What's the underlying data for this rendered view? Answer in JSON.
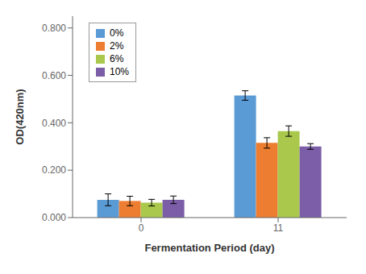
{
  "chart_data": {
    "type": "bar",
    "categories": [
      "0",
      "11"
    ],
    "series": [
      {
        "name": "0%",
        "color": "#5B9BD5",
        "values": [
          0.075,
          0.515
        ],
        "errors": [
          0.025,
          0.02
        ]
      },
      {
        "name": "2%",
        "color": "#ED7D31",
        "values": [
          0.07,
          0.315
        ],
        "errors": [
          0.02,
          0.022
        ]
      },
      {
        "name": "6%",
        "color": "#A9C84C",
        "values": [
          0.063,
          0.365
        ],
        "errors": [
          0.014,
          0.022
        ]
      },
      {
        "name": "10%",
        "color": "#7B5EA7",
        "values": [
          0.075,
          0.3
        ],
        "errors": [
          0.016,
          0.012
        ]
      }
    ],
    "xlabel": "Fermentation Period (day)",
    "ylabel": "OD(420nm)",
    "ylim": [
      0.0,
      0.85
    ],
    "yticks": [
      {
        "value": 0.0,
        "label": "0.000"
      },
      {
        "value": 0.2,
        "label": "0.200"
      },
      {
        "value": 0.4,
        "label": "0.400"
      },
      {
        "value": 0.6,
        "label": "0.600"
      },
      {
        "value": 0.8,
        "label": "0.800"
      }
    ],
    "grid": false,
    "legend": "upper left"
  }
}
